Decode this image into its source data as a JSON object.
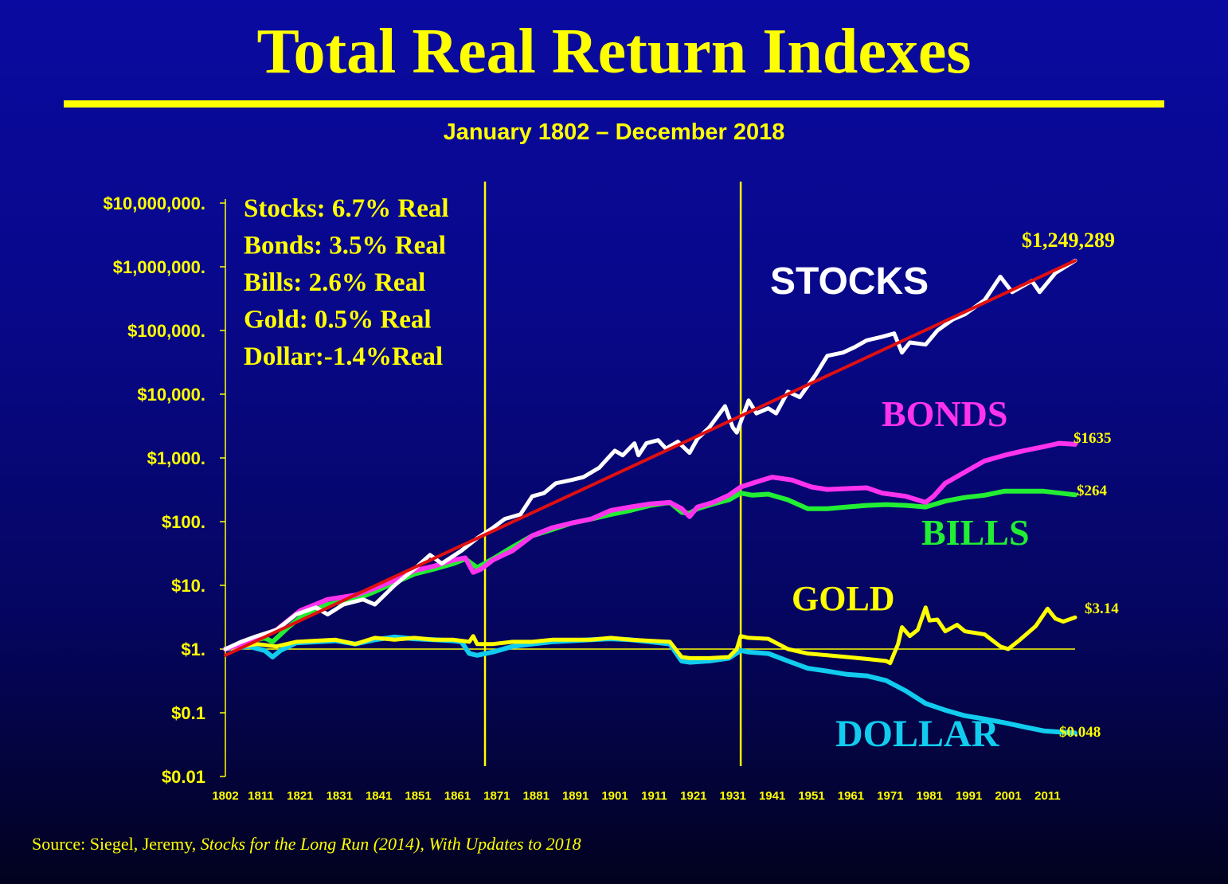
{
  "title": "Total Real Return Indexes",
  "subtitle": "January 1802 – December 2018",
  "source": {
    "prefix": "Source: Siegel, Jeremy, ",
    "italic": "Stocks for the Long Run (2014), With Updates to 2018"
  },
  "chart_data": {
    "type": "line",
    "y_scale": "log",
    "ylim": [
      0.01,
      10000000
    ],
    "xlim": [
      1802,
      2018
    ],
    "y_tick_labels": [
      "$10,000,000.",
      "$1,000,000.",
      "$100,000.",
      "$10,000.",
      "$1,000.",
      "$100.",
      "$10.",
      "$1.",
      "$0.1",
      "$0.01"
    ],
    "y_tick_values": [
      10000000,
      1000000,
      100000,
      10000,
      1000,
      100,
      10,
      1,
      0.1,
      0.01
    ],
    "x_tick_labels": [
      "1802",
      "1811",
      "1821",
      "1831",
      "1841",
      "1851",
      "1861",
      "1871",
      "1881",
      "1891",
      "1901",
      "1911",
      "1921",
      "1931",
      "1941",
      "1951",
      "1961",
      "1971",
      "1981",
      "1991",
      "2001",
      "2011"
    ],
    "x_tick_values": [
      1802,
      1811,
      1821,
      1831,
      1841,
      1851,
      1861,
      1871,
      1881,
      1891,
      1901,
      1911,
      1921,
      1931,
      1941,
      1951,
      1961,
      1971,
      1981,
      1991,
      2001,
      2011
    ],
    "vertical_lines": [
      1868,
      1933
    ],
    "stats_box": [
      "Stocks: 6.7% Real",
      "Bonds: 3.5% Real",
      "Bills:    2.6% Real",
      "Gold:   0.5% Real",
      "Dollar:-1.4%Real"
    ],
    "colors": {
      "background_top": "#0a0aa0",
      "background_bottom": "#02021f",
      "text": "#ffff00",
      "trend": "#e01010",
      "axis": "#ffff00"
    },
    "series": [
      {
        "name": "STOCKS",
        "end_label": "$1,249,289",
        "color": "#ffffff",
        "points": [
          [
            1802,
            1
          ],
          [
            1806,
            1.3
          ],
          [
            1810,
            1.6
          ],
          [
            1815,
            2
          ],
          [
            1820,
            3.5
          ],
          [
            1825,
            4.5
          ],
          [
            1828,
            3.5
          ],
          [
            1832,
            5
          ],
          [
            1837,
            6
          ],
          [
            1840,
            5
          ],
          [
            1845,
            10
          ],
          [
            1850,
            18
          ],
          [
            1854,
            30
          ],
          [
            1857,
            22
          ],
          [
            1862,
            35
          ],
          [
            1866,
            55
          ],
          [
            1870,
            80
          ],
          [
            1873,
            110
          ],
          [
            1877,
            130
          ],
          [
            1880,
            250
          ],
          [
            1883,
            280
          ],
          [
            1886,
            400
          ],
          [
            1890,
            450
          ],
          [
            1893,
            500
          ],
          [
            1897,
            700
          ],
          [
            1901,
            1300
          ],
          [
            1903,
            1100
          ],
          [
            1906,
            1700
          ],
          [
            1907,
            1100
          ],
          [
            1909,
            1700
          ],
          [
            1912,
            1900
          ],
          [
            1914,
            1400
          ],
          [
            1917,
            1800
          ],
          [
            1920,
            1200
          ],
          [
            1922,
            2000
          ],
          [
            1925,
            3000
          ],
          [
            1929,
            6500
          ],
          [
            1931,
            3000
          ],
          [
            1932,
            2500
          ],
          [
            1935,
            8000
          ],
          [
            1937,
            5000
          ],
          [
            1940,
            6000
          ],
          [
            1942,
            5000
          ],
          [
            1945,
            11000
          ],
          [
            1948,
            9000
          ],
          [
            1952,
            20000
          ],
          [
            1955,
            40000
          ],
          [
            1959,
            45000
          ],
          [
            1962,
            55000
          ],
          [
            1965,
            70000
          ],
          [
            1969,
            80000
          ],
          [
            1972,
            90000
          ],
          [
            1974,
            45000
          ],
          [
            1976,
            65000
          ],
          [
            1980,
            60000
          ],
          [
            1983,
            100000
          ],
          [
            1987,
            150000
          ],
          [
            1990,
            180000
          ],
          [
            1995,
            300000
          ],
          [
            1999,
            700000
          ],
          [
            2002,
            400000
          ],
          [
            2007,
            600000
          ],
          [
            2009,
            400000
          ],
          [
            2013,
            800000
          ],
          [
            2018,
            1249289
          ]
        ]
      },
      {
        "name": "BONDS",
        "end_label": "$1635",
        "color": "#ff33ee",
        "points": [
          [
            1802,
            1
          ],
          [
            1808,
            1.3
          ],
          [
            1815,
            2
          ],
          [
            1821,
            4
          ],
          [
            1828,
            6
          ],
          [
            1835,
            7
          ],
          [
            1840,
            9
          ],
          [
            1845,
            12
          ],
          [
            1850,
            17
          ],
          [
            1855,
            20
          ],
          [
            1860,
            25
          ],
          [
            1863,
            27
          ],
          [
            1865,
            16
          ],
          [
            1867,
            18
          ],
          [
            1870,
            25
          ],
          [
            1875,
            35
          ],
          [
            1880,
            60
          ],
          [
            1885,
            80
          ],
          [
            1890,
            95
          ],
          [
            1895,
            110
          ],
          [
            1900,
            150
          ],
          [
            1905,
            170
          ],
          [
            1910,
            190
          ],
          [
            1915,
            200
          ],
          [
            1918,
            160
          ],
          [
            1920,
            120
          ],
          [
            1922,
            170
          ],
          [
            1926,
            200
          ],
          [
            1930,
            260
          ],
          [
            1933,
            350
          ],
          [
            1937,
            420
          ],
          [
            1941,
            500
          ],
          [
            1946,
            450
          ],
          [
            1951,
            350
          ],
          [
            1955,
            320
          ],
          [
            1960,
            330
          ],
          [
            1965,
            340
          ],
          [
            1969,
            280
          ],
          [
            1975,
            250
          ],
          [
            1980,
            200
          ],
          [
            1982,
            250
          ],
          [
            1985,
            400
          ],
          [
            1990,
            600
          ],
          [
            1995,
            900
          ],
          [
            2000,
            1100
          ],
          [
            2005,
            1300
          ],
          [
            2010,
            1500
          ],
          [
            2014,
            1700
          ],
          [
            2018,
            1635
          ]
        ]
      },
      {
        "name": "BILLS",
        "end_label": "$264",
        "color": "#22ee33",
        "points": [
          [
            1802,
            1
          ],
          [
            1808,
            1.3
          ],
          [
            1812,
            1.5
          ],
          [
            1814,
            1.3
          ],
          [
            1818,
            2.2
          ],
          [
            1822,
            3.5
          ],
          [
            1828,
            5
          ],
          [
            1835,
            6
          ],
          [
            1840,
            8
          ],
          [
            1845,
            11
          ],
          [
            1850,
            15
          ],
          [
            1855,
            18
          ],
          [
            1860,
            22
          ],
          [
            1863,
            26
          ],
          [
            1866,
            19
          ],
          [
            1870,
            26
          ],
          [
            1875,
            40
          ],
          [
            1880,
            60
          ],
          [
            1885,
            75
          ],
          [
            1890,
            95
          ],
          [
            1895,
            110
          ],
          [
            1900,
            130
          ],
          [
            1905,
            150
          ],
          [
            1910,
            180
          ],
          [
            1915,
            200
          ],
          [
            1918,
            140
          ],
          [
            1920,
            135
          ],
          [
            1922,
            160
          ],
          [
            1926,
            190
          ],
          [
            1930,
            220
          ],
          [
            1933,
            280
          ],
          [
            1936,
            260
          ],
          [
            1940,
            270
          ],
          [
            1945,
            220
          ],
          [
            1950,
            160
          ],
          [
            1955,
            160
          ],
          [
            1960,
            170
          ],
          [
            1965,
            180
          ],
          [
            1970,
            185
          ],
          [
            1975,
            180
          ],
          [
            1980,
            170
          ],
          [
            1985,
            210
          ],
          [
            1990,
            240
          ],
          [
            1995,
            260
          ],
          [
            2000,
            300
          ],
          [
            2005,
            300
          ],
          [
            2010,
            300
          ],
          [
            2018,
            264
          ]
        ]
      },
      {
        "name": "GOLD",
        "end_label": "$3.14",
        "color": "#ffff00",
        "points": [
          [
            1802,
            1
          ],
          [
            1810,
            1.2
          ],
          [
            1815,
            1.1
          ],
          [
            1820,
            1.3
          ],
          [
            1830,
            1.4
          ],
          [
            1835,
            1.2
          ],
          [
            1840,
            1.5
          ],
          [
            1845,
            1.4
          ],
          [
            1850,
            1.5
          ],
          [
            1855,
            1.4
          ],
          [
            1860,
            1.4
          ],
          [
            1864,
            1.3
          ],
          [
            1865,
            1.6
          ],
          [
            1866,
            1.2
          ],
          [
            1870,
            1.2
          ],
          [
            1875,
            1.3
          ],
          [
            1880,
            1.3
          ],
          [
            1885,
            1.4
          ],
          [
            1890,
            1.4
          ],
          [
            1895,
            1.4
          ],
          [
            1900,
            1.5
          ],
          [
            1905,
            1.4
          ],
          [
            1910,
            1.35
          ],
          [
            1915,
            1.3
          ],
          [
            1918,
            0.75
          ],
          [
            1920,
            0.72
          ],
          [
            1925,
            0.72
          ],
          [
            1930,
            0.75
          ],
          [
            1932,
            1
          ],
          [
            1933,
            1.6
          ],
          [
            1935,
            1.5
          ],
          [
            1940,
            1.45
          ],
          [
            1945,
            1.0
          ],
          [
            1950,
            0.85
          ],
          [
            1955,
            0.8
          ],
          [
            1960,
            0.75
          ],
          [
            1965,
            0.7
          ],
          [
            1970,
            0.65
          ],
          [
            1971,
            0.6
          ],
          [
            1973,
            1.2
          ],
          [
            1974,
            2.2
          ],
          [
            1976,
            1.6
          ],
          [
            1978,
            2.0
          ],
          [
            1980,
            4.5
          ],
          [
            1981,
            2.8
          ],
          [
            1983,
            2.9
          ],
          [
            1985,
            1.9
          ],
          [
            1988,
            2.4
          ],
          [
            1990,
            1.9
          ],
          [
            1995,
            1.7
          ],
          [
            1999,
            1.1
          ],
          [
            2001,
            1.0
          ],
          [
            2004,
            1.4
          ],
          [
            2008,
            2.3
          ],
          [
            2011,
            4.3
          ],
          [
            2013,
            3.0
          ],
          [
            2015,
            2.7
          ],
          [
            2018,
            3.14
          ]
        ]
      },
      {
        "name": "DOLLAR",
        "end_label": "$0.048",
        "color": "#11ccee",
        "points": [
          [
            1802,
            1
          ],
          [
            1808,
            1.1
          ],
          [
            1812,
            0.95
          ],
          [
            1814,
            0.75
          ],
          [
            1816,
            0.95
          ],
          [
            1820,
            1.25
          ],
          [
            1830,
            1.35
          ],
          [
            1835,
            1.2
          ],
          [
            1840,
            1.4
          ],
          [
            1845,
            1.55
          ],
          [
            1850,
            1.45
          ],
          [
            1855,
            1.4
          ],
          [
            1860,
            1.35
          ],
          [
            1862,
            1.3
          ],
          [
            1864,
            0.85
          ],
          [
            1866,
            0.8
          ],
          [
            1870,
            0.9
          ],
          [
            1875,
            1.1
          ],
          [
            1880,
            1.2
          ],
          [
            1885,
            1.3
          ],
          [
            1890,
            1.35
          ],
          [
            1895,
            1.4
          ],
          [
            1900,
            1.45
          ],
          [
            1905,
            1.4
          ],
          [
            1910,
            1.3
          ],
          [
            1915,
            1.2
          ],
          [
            1918,
            0.65
          ],
          [
            1920,
            0.62
          ],
          [
            1925,
            0.65
          ],
          [
            1930,
            0.72
          ],
          [
            1933,
            0.95
          ],
          [
            1935,
            0.9
          ],
          [
            1940,
            0.85
          ],
          [
            1945,
            0.65
          ],
          [
            1950,
            0.5
          ],
          [
            1955,
            0.45
          ],
          [
            1960,
            0.4
          ],
          [
            1965,
            0.38
          ],
          [
            1970,
            0.32
          ],
          [
            1975,
            0.22
          ],
          [
            1980,
            0.14
          ],
          [
            1985,
            0.11
          ],
          [
            1990,
            0.09
          ],
          [
            1995,
            0.08
          ],
          [
            2000,
            0.07
          ],
          [
            2005,
            0.06
          ],
          [
            2010,
            0.052
          ],
          [
            2018,
            0.048
          ]
        ]
      },
      {
        "name": "trend",
        "color": "#e01010",
        "points": [
          [
            1802,
            0.8
          ],
          [
            2018,
            1249289
          ]
        ]
      }
    ]
  }
}
